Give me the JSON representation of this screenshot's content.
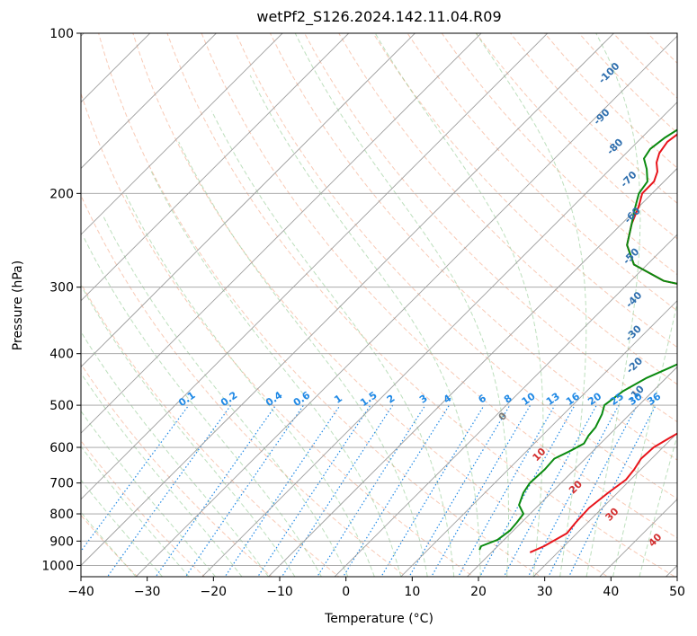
{
  "chart_data": {
    "type": "line",
    "title": "wetPf2_S126.2024.142.11.04.R09",
    "xlabel": "Temperature (°C)",
    "ylabel": "Pressure (hPa)",
    "xlim": [
      -40,
      50
    ],
    "ylim": [
      1050,
      100
    ],
    "y_scale": "log",
    "grid": true,
    "x_ticks": [
      -40,
      -30,
      -20,
      -10,
      0,
      10,
      20,
      30,
      40,
      50
    ],
    "x_tick_labels": [
      "−40",
      "−30",
      "−20",
      "−10",
      "0",
      "10",
      "20",
      "30",
      "40",
      "50"
    ],
    "y_ticks": [
      100,
      200,
      300,
      400,
      500,
      600,
      700,
      800,
      900,
      1000
    ],
    "y_tick_labels": [
      "100",
      "200",
      "300",
      "400",
      "500",
      "600",
      "700",
      "800",
      "900",
      "1000"
    ],
    "dry_adiabat_labels": [
      {
        "text": "-100",
        "x": -34,
        "p": 120
      },
      {
        "text": "-90",
        "x": -28.5,
        "p": 145
      },
      {
        "text": "-80",
        "x": -22,
        "p": 165
      },
      {
        "text": "-70",
        "x": -15,
        "p": 190
      },
      {
        "text": "-60",
        "x": -9,
        "p": 222
      },
      {
        "text": "-50",
        "x": -3,
        "p": 265
      },
      {
        "text": "-40",
        "x": 4,
        "p": 320
      },
      {
        "text": "-30",
        "x": 9,
        "p": 370
      },
      {
        "text": "-20",
        "x": 14,
        "p": 425
      },
      {
        "text": "-10",
        "x": 18.5,
        "p": 480
      }
    ],
    "mixing_ratio_labels": [
      "0.1",
      "0.2",
      "0.4",
      "0.6",
      "1",
      "1.5",
      "2",
      "3",
      "4",
      "6",
      "8",
      "10",
      "13",
      "16",
      "20",
      "25",
      "30",
      "36"
    ],
    "moist_adiabat_labels": [
      {
        "text": "0",
        "x": 24,
        "p": 530
      },
      {
        "text": "10",
        "x": 29.5,
        "p": 625
      },
      {
        "text": "20",
        "x": 35,
        "p": 720
      },
      {
        "text": "30",
        "x": 40.5,
        "p": 810
      },
      {
        "text": "40",
        "x": 47,
        "p": 905
      }
    ],
    "series": [
      {
        "color": "#e8141b",
        "points": [
          [
            25.8,
            945
          ],
          [
            27,
            920
          ],
          [
            28.5,
            870
          ],
          [
            28.2,
            830
          ],
          [
            28,
            780
          ],
          [
            28.6,
            730
          ],
          [
            29.3,
            690
          ],
          [
            29,
            660
          ],
          [
            28.4,
            630
          ],
          [
            28.6,
            600
          ],
          [
            29.6,
            575
          ],
          [
            30.8,
            550
          ],
          [
            32,
            520
          ],
          [
            33.3,
            490
          ],
          [
            35,
            460
          ],
          [
            35.8,
            430
          ],
          [
            35.5,
            400
          ],
          [
            34.5,
            370
          ],
          [
            32,
            345
          ],
          [
            28.5,
            330
          ],
          [
            24,
            320
          ],
          [
            20,
            313
          ],
          [
            13,
            304
          ],
          [
            5,
            292
          ],
          [
            -2,
            272
          ],
          [
            -6,
            250
          ],
          [
            -8.5,
            228
          ],
          [
            -10,
            212
          ],
          [
            -11.5,
            200
          ],
          [
            -11.5,
            190
          ],
          [
            -12.5,
            182
          ],
          [
            -14,
            175
          ],
          [
            -15,
            168
          ],
          [
            -15.5,
            160
          ],
          [
            -15,
            153
          ],
          [
            -13.5,
            147
          ],
          [
            -12.5,
            140
          ],
          [
            -12,
            132
          ],
          [
            -11.3,
            125
          ],
          [
            -10.5,
            120
          ],
          [
            -9.3,
            113
          ],
          [
            -8,
            107
          ],
          [
            -6.3,
            100
          ]
        ]
      },
      {
        "color": "#0a8a0f",
        "points": [
          [
            17.8,
            935
          ],
          [
            17.5,
            920
          ],
          [
            19,
            895
          ],
          [
            19.5,
            860
          ],
          [
            19.3,
            830
          ],
          [
            19,
            800
          ],
          [
            17,
            770
          ],
          [
            15.8,
            730
          ],
          [
            15.3,
            700
          ],
          [
            15.5,
            660
          ],
          [
            15.3,
            630
          ],
          [
            16.5,
            610
          ],
          [
            17.5,
            590
          ],
          [
            17,
            570
          ],
          [
            16.8,
            550
          ],
          [
            15.8,
            520
          ],
          [
            14.8,
            500
          ],
          [
            15.5,
            470
          ],
          [
            17,
            445
          ],
          [
            19,
            425
          ],
          [
            20.5,
            410
          ],
          [
            20.5,
            385
          ],
          [
            20.5,
            365
          ],
          [
            22,
            345
          ],
          [
            23.5,
            325
          ],
          [
            21,
            316
          ],
          [
            13,
            304
          ],
          [
            5,
            292
          ],
          [
            -2,
            272
          ],
          [
            -6,
            250
          ],
          [
            -8.5,
            228
          ],
          [
            -10.5,
            212
          ],
          [
            -12,
            200
          ],
          [
            -12.5,
            190
          ],
          [
            -14.5,
            180
          ],
          [
            -16.5,
            172
          ],
          [
            -17,
            165
          ],
          [
            -16.5,
            157
          ],
          [
            -15.3,
            148
          ],
          [
            -13.8,
            140
          ],
          [
            -13,
            130
          ],
          [
            -12.5,
            122
          ],
          [
            -11.5,
            116
          ],
          [
            -10.3,
            110
          ],
          [
            -8.8,
            104
          ],
          [
            -7.5,
            100
          ]
        ]
      }
    ]
  }
}
